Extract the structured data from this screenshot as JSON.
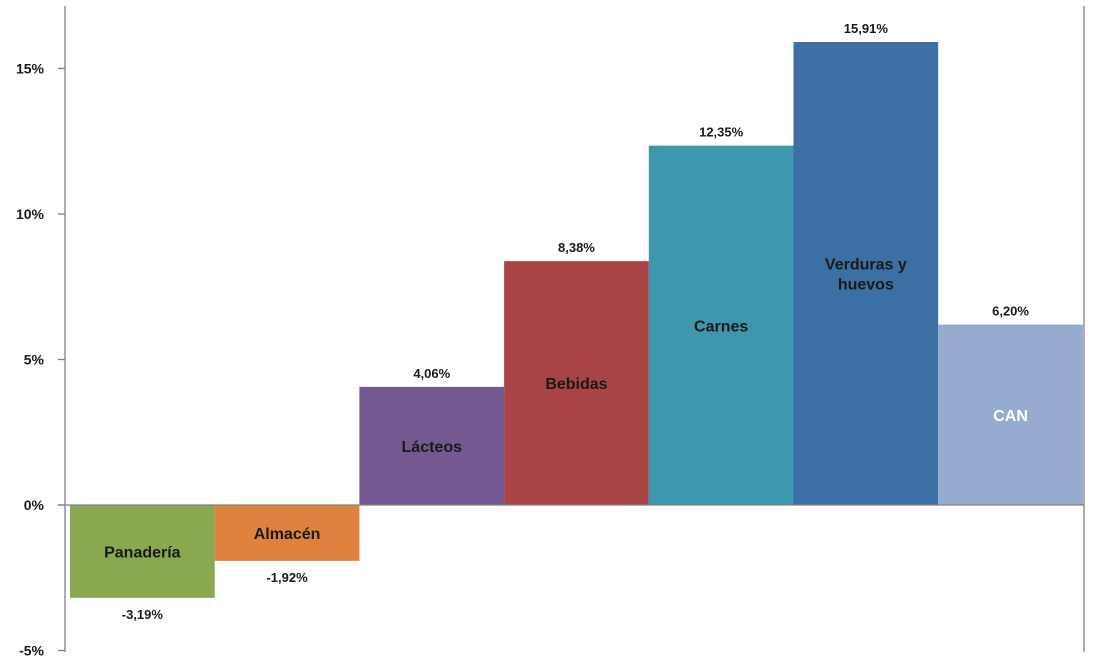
{
  "chart_data": {
    "type": "bar",
    "categories": [
      "Panadería",
      "Almacén",
      "Lácteos",
      "Bebidas",
      "Carnes",
      "Verduras y huevos",
      "CAN"
    ],
    "values": [
      -3.19,
      -1.92,
      4.06,
      8.38,
      12.35,
      15.91,
      6.2
    ],
    "value_labels": [
      "-3,19%",
      "-1,92%",
      "4,06%",
      "8,38%",
      "12,35%",
      "15,91%",
      "6,20%"
    ],
    "category_label_lines": [
      [
        "Panadería"
      ],
      [
        "Almacén"
      ],
      [
        "Lácteos"
      ],
      [
        "Bebidas"
      ],
      [
        "Carnes"
      ],
      [
        "Verduras y",
        "huevos"
      ],
      [
        "CAN"
      ]
    ],
    "colors": [
      "#8aa84e",
      "#de823e",
      "#735891",
      "#a84445",
      "#3d97ad",
      "#3c6fa3",
      "#95abd0"
    ],
    "category_label_colors": [
      "#1a1a1a",
      "#1a1a1a",
      "#1a1a1a",
      "#1a1a1a",
      "#1a1a1a",
      "#1a1a1a",
      "#ffffff"
    ],
    "yticks": [
      -5,
      0,
      5,
      10,
      15
    ],
    "ytick_labels": [
      "-5%",
      "0%",
      "5%",
      "10%",
      "15%"
    ],
    "ylim": [
      -5,
      17
    ],
    "title": "",
    "xlabel": "",
    "ylabel": "",
    "grid": false,
    "legend": "none"
  }
}
